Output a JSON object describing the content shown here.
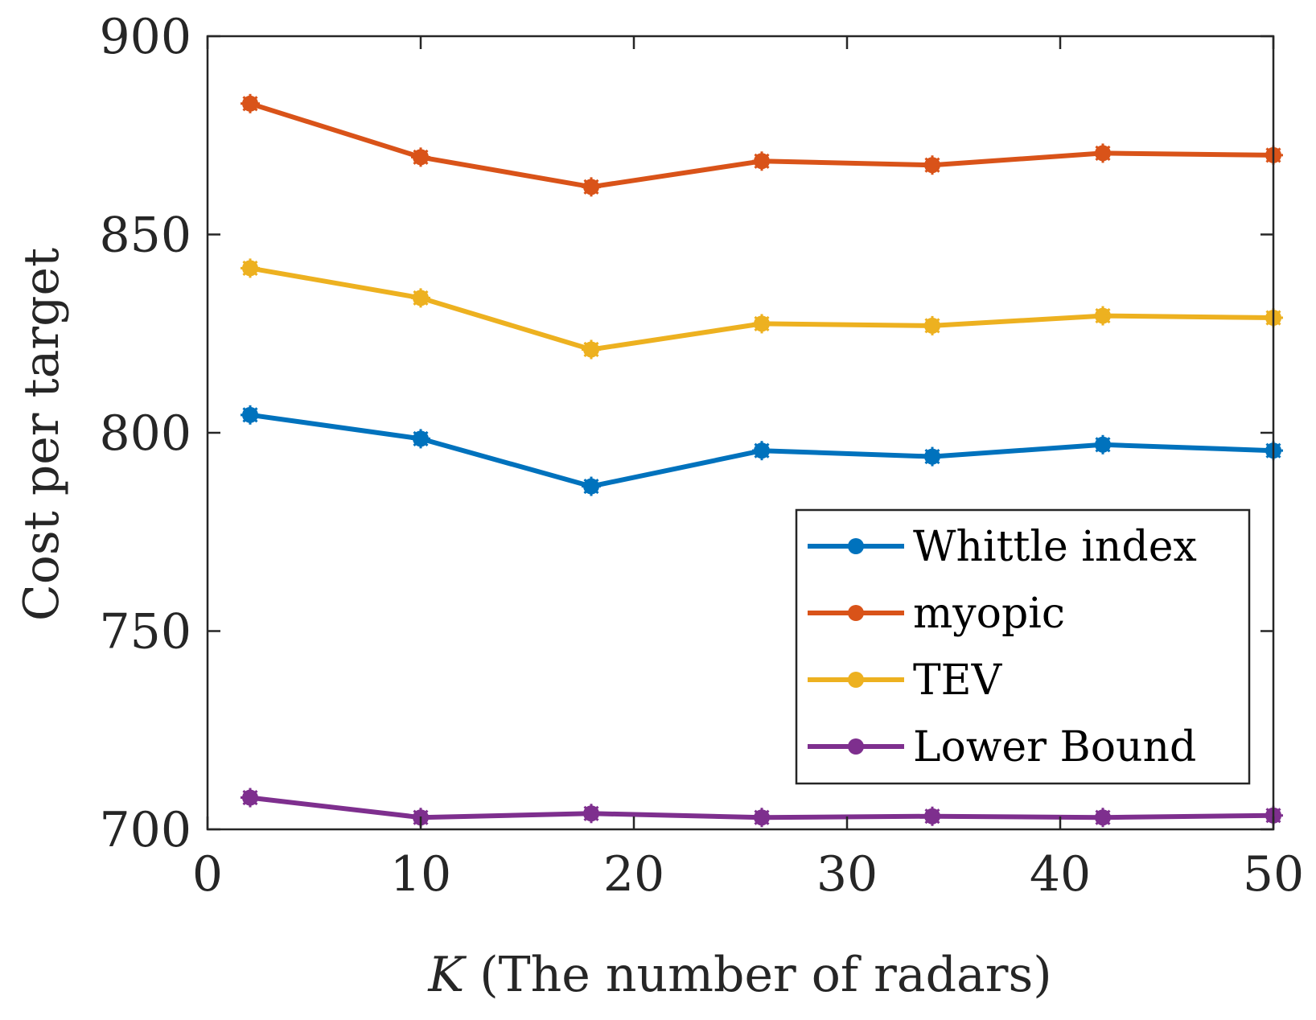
{
  "chart_data": {
    "type": "line",
    "xlabel_var": "K",
    "xlabel_rest": " (The number of radars)",
    "ylabel": "Cost per target",
    "xlim": [
      0,
      50
    ],
    "ylim": [
      700,
      900
    ],
    "xticks": [
      0,
      10,
      20,
      30,
      40,
      50
    ],
    "yticks": [
      700,
      750,
      800,
      850,
      900
    ],
    "x": [
      2,
      10,
      18,
      26,
      34,
      42,
      50
    ],
    "grid": false,
    "legend_position": "bottom-right",
    "series": [
      {
        "name": "Whittle index",
        "color": "#0072BD",
        "values": [
          804.5,
          798.5,
          786.5,
          795.5,
          794.0,
          797.0,
          795.5
        ]
      },
      {
        "name": "myopic",
        "color": "#D95319",
        "values": [
          883.0,
          869.5,
          862.0,
          868.5,
          867.5,
          870.5,
          870.0
        ]
      },
      {
        "name": "TEV",
        "color": "#EDB120",
        "values": [
          841.5,
          834.0,
          821.0,
          827.5,
          827.0,
          829.5,
          829.0
        ]
      },
      {
        "name": "Lower Bound",
        "color": "#7E2F8E",
        "values": [
          708.0,
          703.0,
          704.0,
          703.0,
          703.3,
          703.0,
          703.5
        ]
      }
    ]
  }
}
